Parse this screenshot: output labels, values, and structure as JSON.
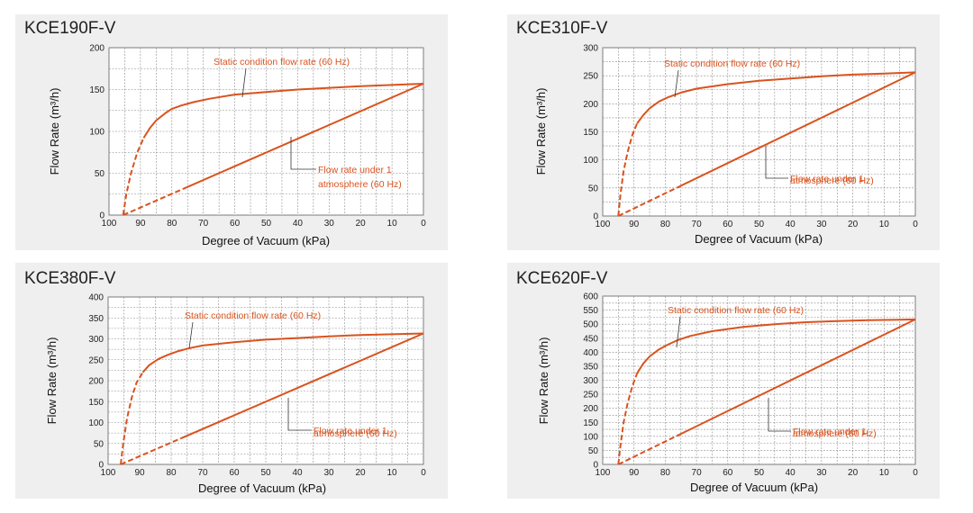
{
  "colors": {
    "curve": "#d9531e",
    "panel_bg": "#efefef",
    "plot_bg": "#ffffff",
    "grid": "#8a8a8a"
  },
  "chart_data": [
    {
      "type": "line",
      "title": "KCE190F-V",
      "xlabel": "Degree of Vacuum (kPa)",
      "ylabel": "Flow Rate (m³/h)",
      "xlim": [
        100,
        0
      ],
      "ylim": [
        0,
        200
      ],
      "x_ticks": [
        100,
        90,
        80,
        70,
        60,
        50,
        40,
        30,
        20,
        10,
        0
      ],
      "y_ticks": [
        0,
        50,
        100,
        150,
        200
      ],
      "grid": true,
      "series": [
        {
          "name": "Static condition flow rate (60 Hz)",
          "x": [
            95.5,
            94.5,
            93,
            91,
            89,
            87,
            85,
            82,
            80,
            77,
            73,
            68,
            60,
            50,
            40,
            30,
            20,
            10,
            0
          ],
          "y": [
            0,
            25,
            50,
            75,
            92,
            104,
            113,
            122,
            127,
            131,
            135,
            139,
            144,
            147,
            150,
            152,
            154,
            155.5,
            157
          ]
        },
        {
          "name": "Flow rate under 1 atmosphere (60 Hz)",
          "x": [
            95.5,
            0
          ],
          "y": [
            0,
            157
          ]
        }
      ],
      "annotations": [
        {
          "text": "Static condition flow rate (60 Hz)"
        },
        {
          "text_line1": "Flow rate under 1",
          "text_line2": "atmosphere (60 Hz)"
        }
      ]
    },
    {
      "type": "line",
      "title": "KCE310F-V",
      "xlabel": "Degree of Vacuum (kPa)",
      "ylabel": "Flow Rate (m³/h)",
      "xlim": [
        100,
        0
      ],
      "ylim": [
        0,
        300
      ],
      "x_ticks": [
        100,
        90,
        80,
        70,
        60,
        50,
        40,
        30,
        20,
        10,
        0
      ],
      "y_ticks": [
        0,
        50,
        100,
        150,
        200,
        250,
        300
      ],
      "grid": true,
      "series": [
        {
          "name": "Static condition flow rate (60 Hz)",
          "x": [
            95,
            94.3,
            93.3,
            92,
            90.5,
            89,
            87,
            85,
            82,
            79,
            75,
            70,
            60,
            50,
            40,
            30,
            20,
            10,
            0
          ],
          "y": [
            0,
            40,
            80,
            115,
            145,
            165,
            180,
            192,
            204,
            212,
            220,
            227,
            235,
            241,
            245,
            249,
            252,
            254,
            256
          ]
        },
        {
          "name": "Flow rate under 1 atmosphere (60 Hz)",
          "x": [
            95,
            0
          ],
          "y": [
            0,
            256
          ]
        }
      ],
      "annotations": [
        {
          "text": "Static condition flow rate (60 Hz)"
        },
        {
          "text_line1": "Flow rate under 1",
          "text_line2": "atmosphere (60 Hz)"
        }
      ]
    },
    {
      "type": "line",
      "title": "KCE380F-V",
      "xlabel": "Degree of Vacuum (kPa)",
      "ylabel": "Flow Rate (m³/h)",
      "xlim": [
        100,
        0
      ],
      "ylim": [
        0,
        400
      ],
      "x_ticks": [
        100,
        90,
        80,
        70,
        60,
        50,
        40,
        30,
        20,
        10,
        0
      ],
      "y_ticks": [
        0,
        50,
        100,
        150,
        200,
        250,
        300,
        350,
        400
      ],
      "grid": true,
      "series": [
        {
          "name": "Static condition flow rate (60 Hz)",
          "x": [
            96,
            95.2,
            94,
            92.5,
            91,
            89,
            87,
            84,
            81,
            78,
            74,
            70,
            60,
            50,
            40,
            30,
            20,
            10,
            0
          ],
          "y": [
            0,
            50,
            110,
            160,
            195,
            220,
            237,
            252,
            262,
            270,
            278,
            284,
            292,
            298,
            302,
            306,
            309,
            311,
            313
          ]
        },
        {
          "name": "Flow rate under 1 atmosphere (60 Hz)",
          "x": [
            96,
            0
          ],
          "y": [
            0,
            313
          ]
        }
      ],
      "annotations": [
        {
          "text": "Static condition flow rate (60 Hz)"
        },
        {
          "text_line1": "Flow rate under 1",
          "text_line2": "atmosphere (60 Hz)"
        }
      ]
    },
    {
      "type": "line",
      "title": "KCE620F-V",
      "xlabel": "Degree of Vacuum (kPa)",
      "ylabel": "Flow Rate (m³/h)",
      "xlim": [
        100,
        0
      ],
      "ylim": [
        0,
        600
      ],
      "x_ticks": [
        100,
        90,
        80,
        70,
        60,
        50,
        40,
        30,
        20,
        10,
        0
      ],
      "y_ticks": [
        0,
        50,
        100,
        150,
        200,
        250,
        300,
        350,
        400,
        450,
        500,
        550,
        600
      ],
      "grid": true,
      "series": [
        {
          "name": "Static condition flow rate (60 Hz)",
          "x": [
            95,
            94.3,
            93.3,
            92,
            90.5,
            89,
            87,
            85,
            82,
            79,
            76,
            72,
            65,
            55,
            45,
            35,
            25,
            15,
            5,
            0
          ],
          "y": [
            0,
            70,
            150,
            220,
            280,
            325,
            360,
            385,
            410,
            428,
            443,
            458,
            475,
            490,
            500,
            507,
            511,
            514,
            516,
            517
          ]
        },
        {
          "name": "Flow rate under 1 atmosphere (60 Hz)",
          "x": [
            95,
            0
          ],
          "y": [
            0,
            517
          ]
        }
      ],
      "annotations": [
        {
          "text": "Static condition flow rate (60 Hz)"
        },
        {
          "text_line1": "Flow rate under 1",
          "text_line2": "atmosphere (60 Hz)"
        }
      ]
    }
  ]
}
